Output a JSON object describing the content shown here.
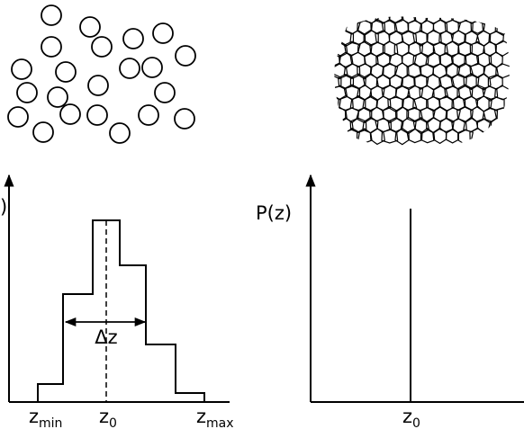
{
  "left_plot": {
    "axis_label": ")",
    "ticks": [
      {
        "base": "z",
        "sub": "min"
      },
      {
        "base": "z",
        "sub": "0"
      },
      {
        "base": "z",
        "sub": "max"
      }
    ],
    "width_label": "Δz"
  },
  "right_plot": {
    "axis_label": "P(z)",
    "tick": {
      "base": "z",
      "sub": "0"
    }
  }
}
